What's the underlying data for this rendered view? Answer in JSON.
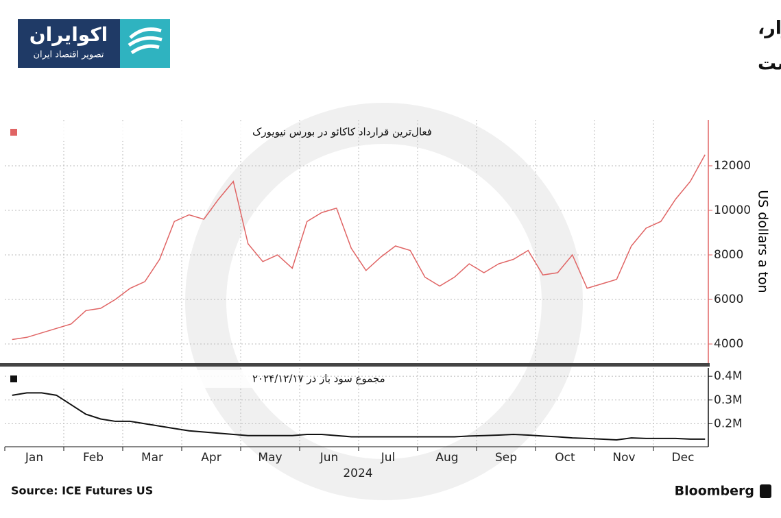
{
  "header": {
    "title_line1": "نگرانی‌ها از عرضه و عدم نقدشوندگی بازار،",
    "title_line2": "قیمت کاکائو را به سطوح بی‌سابقه‌ای سوق داده است"
  },
  "logo": {
    "name": "اکوایران",
    "tagline": "تصویر اقتصاد ایران"
  },
  "footer": {
    "source": "Source: ICE Futures US",
    "brand": "Bloomberg"
  },
  "chart_data": [
    {
      "type": "line",
      "ylabel": "US dollars a ton",
      "categories": [
        "Jan",
        null,
        null,
        null,
        "Feb",
        null,
        null,
        null,
        "Mar",
        null,
        null,
        null,
        "Apr",
        null,
        null,
        null,
        "May",
        null,
        null,
        null,
        "Jun",
        null,
        null,
        null,
        "Jul",
        null,
        null,
        null,
        "Aug",
        null,
        null,
        null,
        "Sep",
        null,
        null,
        null,
        "Oct",
        null,
        null,
        null,
        "Nov",
        null,
        null,
        null,
        "Dec",
        null,
        null,
        null
      ],
      "series": [
        {
          "name": "فعال‌ترین قرارداد کاکائو در بورس نیویورک",
          "color": "#e06464",
          "values": [
            4200,
            4300,
            4500,
            4700,
            4900,
            5500,
            5600,
            6000,
            6500,
            6800,
            7800,
            9500,
            9800,
            9600,
            10500,
            11300,
            8500,
            7700,
            8000,
            7400,
            9500,
            9900,
            10100,
            8300,
            7300,
            7900,
            8400,
            8200,
            7000,
            6600,
            7000,
            7600,
            7200,
            7600,
            7800,
            8200,
            7100,
            7200,
            8000,
            6500,
            6700,
            6900,
            8400,
            9200,
            9500,
            10500,
            11300,
            12500
          ]
        }
      ],
      "ylim": [
        3140,
        14060
      ],
      "yticks": [
        4000,
        6000,
        8000,
        10000,
        12000
      ],
      "grid": true
    },
    {
      "type": "line",
      "x_label": "2024",
      "categories": [
        "Jan",
        null,
        null,
        null,
        "Feb",
        null,
        null,
        null,
        "Mar",
        null,
        null,
        null,
        "Apr",
        null,
        null,
        null,
        "May",
        null,
        null,
        null,
        "Jun",
        null,
        null,
        null,
        "Jul",
        null,
        null,
        null,
        "Aug",
        null,
        null,
        null,
        "Sep",
        null,
        null,
        null,
        "Oct",
        null,
        null,
        null,
        "Nov",
        null,
        null,
        null,
        "Dec",
        null,
        null,
        null
      ],
      "series": [
        {
          "name": "مجموع سود باز در ۲۰۲۴/۱۲/۱۷",
          "color": "#111111",
          "values": [
            320000,
            330000,
            330000,
            320000,
            280000,
            240000,
            220000,
            210000,
            210000,
            200000,
            190000,
            180000,
            170000,
            165000,
            160000,
            155000,
            150000,
            150000,
            150000,
            150000,
            155000,
            155000,
            150000,
            145000,
            145000,
            145000,
            145000,
            145000,
            145000,
            145000,
            145000,
            148000,
            150000,
            152000,
            155000,
            152000,
            148000,
            145000,
            140000,
            138000,
            135000,
            132000,
            140000,
            138000,
            138000,
            138000,
            135000,
            135000
          ]
        }
      ],
      "ylim": [
        103000,
        435000
      ],
      "yticks": [
        {
          "value": 200000,
          "label": "0.2M"
        },
        {
          "value": 300000,
          "label": "0.3M"
        },
        {
          "value": 400000,
          "label": "0.4M"
        }
      ],
      "grid": true
    }
  ]
}
